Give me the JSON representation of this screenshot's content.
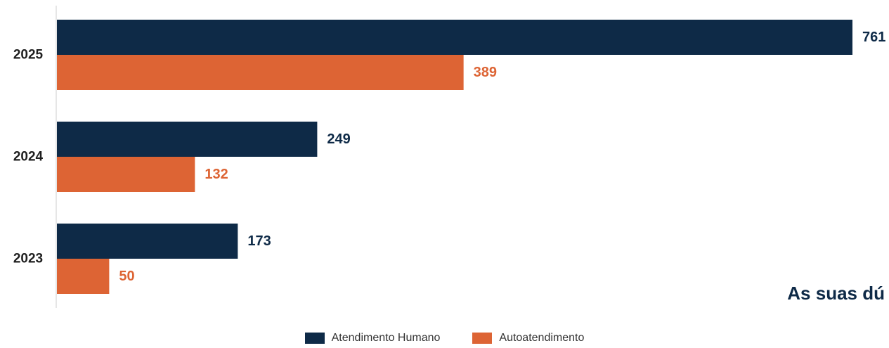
{
  "chart_data": {
    "type": "bar",
    "orientation": "horizontal",
    "categories": [
      "2025",
      "2024",
      "2023"
    ],
    "series": [
      {
        "name": "Atendimento Humano",
        "values": [
          761,
          249,
          173
        ],
        "color": "#0e2a47"
      },
      {
        "name": "Autoatendimento",
        "values": [
          389,
          132,
          50
        ],
        "color": "#dd6434"
      }
    ],
    "xlim": [
      0,
      761
    ],
    "grid": false,
    "legend_position": "bottom-center"
  },
  "overlay_text": "As suas dú"
}
